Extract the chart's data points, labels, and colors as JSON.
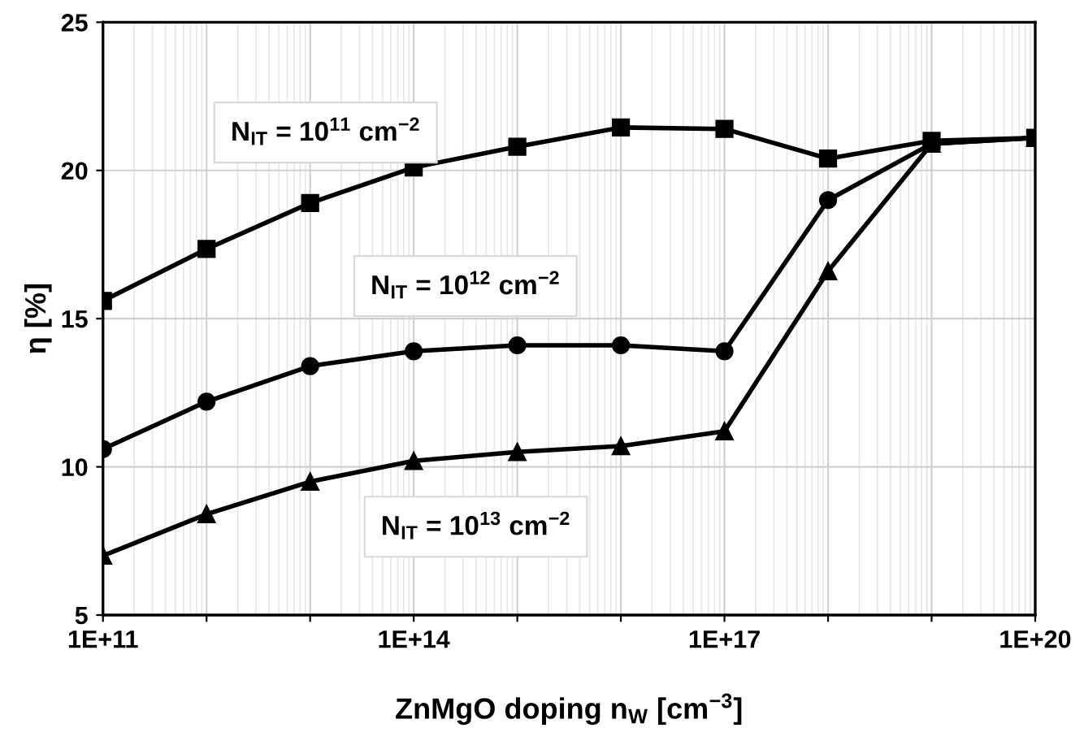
{
  "chart_data": {
    "type": "line",
    "xlabel": "ZnMgO doping n$_{W}$ [cm$^{−3}$]",
    "ylabel": "η [%]",
    "log": "x",
    "x": [
      100000000000.0,
      1000000000000.0,
      10000000000000.0,
      100000000000000.0,
      1000000000000000.0,
      1e+16,
      1e+17,
      1e+18,
      1e+19,
      1e+20
    ],
    "series": [
      {
        "name": "N$_{IT}$ = 10$^{11}$ cm$^{−2}$",
        "color": "#000000",
        "marker": "square",
        "values": [
          15.6,
          17.35,
          18.9,
          20.1,
          20.8,
          21.45,
          21.4,
          20.4,
          21.0,
          21.1
        ]
      },
      {
        "name": "N$_{IT}$ = 10$^{12}$ cm$^{−2}$",
        "color": "#000000",
        "marker": "circle",
        "values": [
          10.6,
          12.2,
          13.4,
          13.9,
          14.1,
          14.1,
          13.9,
          19.0,
          20.9,
          21.1
        ]
      },
      {
        "name": "N$_{IT}$ = 10$^{13}$ cm$^{−2}$",
        "color": "#000000",
        "marker": "triangle",
        "values": [
          7.0,
          8.4,
          9.5,
          10.2,
          10.5,
          10.7,
          11.2,
          16.6,
          20.9,
          21.1
        ]
      }
    ],
    "xlim": [
      100000000000.0,
      1e+20
    ],
    "xticks": [
      {
        "value": 100000000000.0,
        "label": "1E+11"
      },
      {
        "value": 1000000000000.0,
        "label": null
      },
      {
        "value": 10000000000000.0,
        "label": null
      },
      {
        "value": 100000000000000.0,
        "label": "1E+14"
      },
      {
        "value": 1000000000000000.0,
        "label": null
      },
      {
        "value": 1e+16,
        "label": null
      },
      {
        "value": 1e+17,
        "label": "1E+17"
      },
      {
        "value": 1e+18,
        "label": null
      },
      {
        "value": 1e+19,
        "label": null
      },
      {
        "value": 1e+20,
        "label": "1E+20"
      }
    ],
    "ylim": [
      5,
      25
    ],
    "yticks": [
      5,
      10,
      15,
      20,
      25
    ],
    "grid": true,
    "line_style": "solid"
  }
}
